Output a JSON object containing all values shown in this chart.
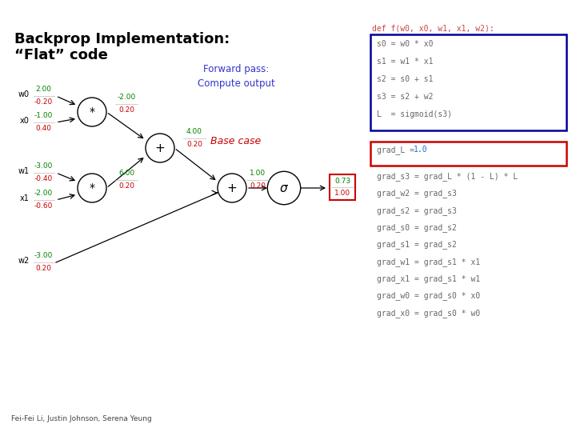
{
  "title_line1": "Backprop Implementation:",
  "title_line2": "“Flat” code",
  "title_fontsize": 13,
  "title_color": "#000000",
  "background_color": "#ffffff",
  "forward_pass_label": "Forward pass:\nCompute output",
  "forward_pass_color": "#3333cc",
  "base_case_label": "Base case",
  "base_case_color": "#cc0000",
  "footer": "Fei-Fei Li, Justin Johnson, Serena Yeung",
  "code_def_line": "def f(w0, x0, w1, x1, w2):",
  "code_def_color": "#cc4444",
  "code_forward": [
    "s0 = w0 * x0",
    "s1 = w1 * x1",
    "s2 = s0 + s1",
    "s3 = s2 + w2",
    "L  = sigmoid(s3)"
  ],
  "code_forward_box_color": "#000099",
  "code_base_prefix": "grad_L = ",
  "code_base_highlight": "1.0",
  "code_base_box_color": "#cc0000",
  "code_backprop": [
    "grad_s3 = grad_L * (1 - L) * L",
    "grad_w2 = grad_s3",
    "grad_s2 = grad_s3",
    "grad_s0 = grad_s2",
    "grad_s1 = grad_s2",
    "grad_w1 = grad_s1 * x1",
    "grad_x1 = grad_s1 * w1",
    "grad_w0 = grad_s0 * x0",
    "grad_x0 = grad_s0 * w0"
  ],
  "code_color_normal": "#666666",
  "code_color_highlight": "#1a6ecc",
  "green_color": "#008000",
  "red_color": "#cc0000"
}
